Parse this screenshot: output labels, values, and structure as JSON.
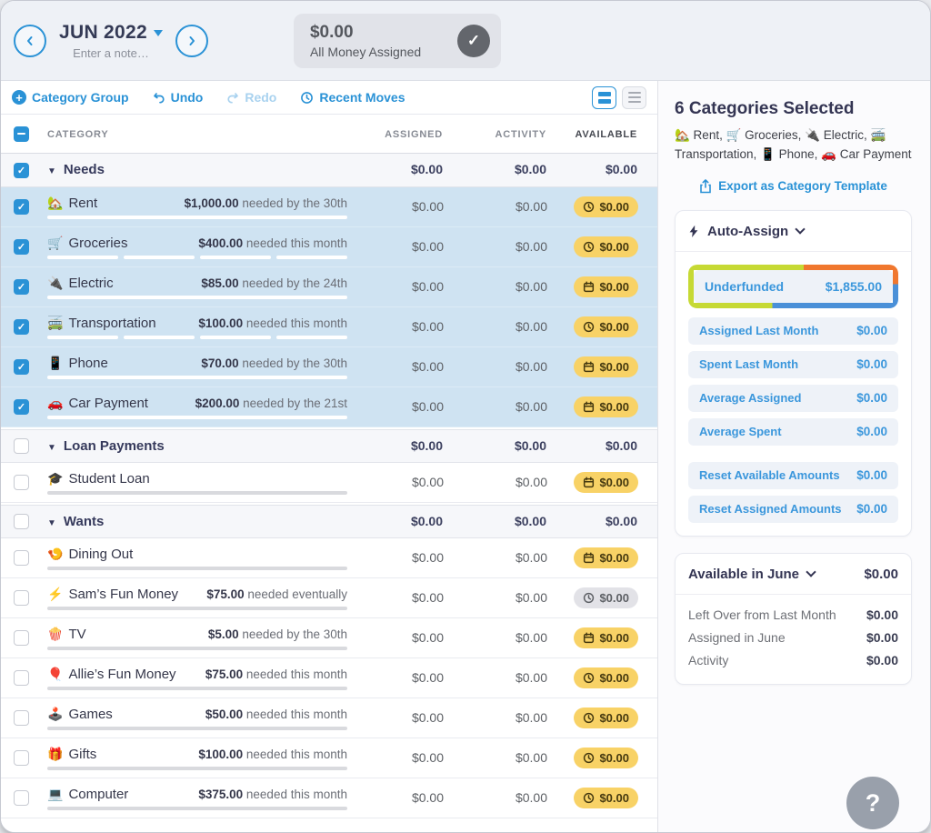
{
  "header": {
    "month_label": "JUN 2022",
    "note_placeholder": "Enter a note…",
    "money_box": {
      "amount": "$0.00",
      "label": "All Money Assigned"
    }
  },
  "toolbar": {
    "category_group": "Category Group",
    "undo": "Undo",
    "redo": "Redo",
    "recent_moves": "Recent Moves"
  },
  "table": {
    "columns": {
      "category": "CATEGORY",
      "assigned": "ASSIGNED",
      "activity": "ACTIVITY",
      "available": "AVAILABLE"
    },
    "rows": [
      {
        "type": "group",
        "name": "Needs",
        "checked": true,
        "assigned": "$0.00",
        "activity": "$0.00",
        "available": "$0.00"
      },
      {
        "type": "category",
        "emoji": "🏡",
        "name": "Rent",
        "checked": true,
        "selected": true,
        "target_amount": "$1,000.00",
        "target_note": "needed by the 30th",
        "assigned": "$0.00",
        "activity": "$0.00",
        "available": "$0.00",
        "pill": "yellow",
        "pill_icon": "clock",
        "segments": 1
      },
      {
        "type": "category",
        "emoji": "🛒",
        "name": "Groceries",
        "checked": true,
        "selected": true,
        "target_amount": "$400.00",
        "target_note": "needed this month",
        "assigned": "$0.00",
        "activity": "$0.00",
        "available": "$0.00",
        "pill": "yellow",
        "pill_icon": "clock",
        "segments": 4
      },
      {
        "type": "category",
        "emoji": "🔌",
        "name": "Electric",
        "checked": true,
        "selected": true,
        "target_amount": "$85.00",
        "target_note": "needed by the 24th",
        "assigned": "$0.00",
        "activity": "$0.00",
        "available": "$0.00",
        "pill": "yellow",
        "pill_icon": "calendar",
        "segments": 1
      },
      {
        "type": "category",
        "emoji": "🚎",
        "name": "Transportation",
        "checked": true,
        "selected": true,
        "target_amount": "$100.00",
        "target_note": "needed this month",
        "assigned": "$0.00",
        "activity": "$0.00",
        "available": "$0.00",
        "pill": "yellow",
        "pill_icon": "clock",
        "segments": 4
      },
      {
        "type": "category",
        "emoji": "📱",
        "name": "Phone",
        "checked": true,
        "selected": true,
        "target_amount": "$70.00",
        "target_note": "needed by the 30th",
        "assigned": "$0.00",
        "activity": "$0.00",
        "available": "$0.00",
        "pill": "yellow",
        "pill_icon": "calendar",
        "segments": 1
      },
      {
        "type": "category",
        "emoji": "🚗",
        "name": "Car Payment",
        "checked": true,
        "selected": true,
        "target_amount": "$200.00",
        "target_note": "needed by the 21st",
        "assigned": "$0.00",
        "activity": "$0.00",
        "available": "$0.00",
        "pill": "yellow",
        "pill_icon": "calendar",
        "segments": 1
      },
      {
        "type": "group",
        "name": "Loan Payments",
        "checked": false,
        "assigned": "$0.00",
        "activity": "$0.00",
        "available": "$0.00"
      },
      {
        "type": "category",
        "emoji": "🎓",
        "name": "Student Loan",
        "checked": false,
        "selected": false,
        "target_amount": "",
        "target_note": "",
        "assigned": "$0.00",
        "activity": "$0.00",
        "available": "$0.00",
        "pill": "yellow",
        "pill_icon": "calendar",
        "segments": 1
      },
      {
        "type": "group",
        "name": "Wants",
        "checked": false,
        "assigned": "$0.00",
        "activity": "$0.00",
        "available": "$0.00"
      },
      {
        "type": "category",
        "emoji": "🍤",
        "name": "Dining Out",
        "checked": false,
        "selected": false,
        "target_amount": "",
        "target_note": "",
        "assigned": "$0.00",
        "activity": "$0.00",
        "available": "$0.00",
        "pill": "yellow",
        "pill_icon": "calendar",
        "segments": 1
      },
      {
        "type": "category",
        "emoji": "⚡",
        "name": "Sam’s Fun Money",
        "checked": false,
        "selected": false,
        "target_amount": "$75.00",
        "target_note": "needed eventually",
        "assigned": "$0.00",
        "activity": "$0.00",
        "available": "$0.00",
        "pill": "gray",
        "pill_icon": "clock",
        "segments": 1
      },
      {
        "type": "category",
        "emoji": "🍿",
        "name": "TV",
        "checked": false,
        "selected": false,
        "target_amount": "$5.00",
        "target_note": "needed by the 30th",
        "assigned": "$0.00",
        "activity": "$0.00",
        "available": "$0.00",
        "pill": "yellow",
        "pill_icon": "calendar",
        "segments": 1
      },
      {
        "type": "category",
        "emoji": "🎈",
        "name": "Allie’s Fun Money",
        "checked": false,
        "selected": false,
        "target_amount": "$75.00",
        "target_note": "needed this month",
        "assigned": "$0.00",
        "activity": "$0.00",
        "available": "$0.00",
        "pill": "yellow",
        "pill_icon": "clock",
        "segments": 1
      },
      {
        "type": "category",
        "emoji": "🕹️",
        "name": "Games",
        "checked": false,
        "selected": false,
        "target_amount": "$50.00",
        "target_note": "needed this month",
        "assigned": "$0.00",
        "activity": "$0.00",
        "available": "$0.00",
        "pill": "yellow",
        "pill_icon": "clock",
        "segments": 1
      },
      {
        "type": "category",
        "emoji": "🎁",
        "name": "Gifts",
        "checked": false,
        "selected": false,
        "target_amount": "$100.00",
        "target_note": "needed this month",
        "assigned": "$0.00",
        "activity": "$0.00",
        "available": "$0.00",
        "pill": "yellow",
        "pill_icon": "clock",
        "segments": 1
      },
      {
        "type": "category",
        "emoji": "💻",
        "name": "Computer",
        "checked": false,
        "selected": false,
        "target_amount": "$375.00",
        "target_note": "needed this month",
        "assigned": "$0.00",
        "activity": "$0.00",
        "available": "$0.00",
        "pill": "yellow",
        "pill_icon": "clock",
        "segments": 1
      }
    ]
  },
  "sidebar": {
    "title": "6 Categories Selected",
    "selected_list": "🏡 Rent, 🛒 Groceries, 🔌 Electric, 🚎 Transportation, 📱 Phone, 🚗 Car Payment",
    "export_label": "Export as Category Template",
    "auto_assign": {
      "title": "Auto-Assign",
      "underfunded": {
        "label": "Underfunded",
        "value": "$1,855.00"
      },
      "stats": [
        {
          "label": "Assigned Last Month",
          "value": "$0.00"
        },
        {
          "label": "Spent Last Month",
          "value": "$0.00"
        },
        {
          "label": "Average Assigned",
          "value": "$0.00"
        },
        {
          "label": "Average Spent",
          "value": "$0.00"
        }
      ],
      "resets": [
        {
          "label": "Reset Available Amounts",
          "value": "$0.00"
        },
        {
          "label": "Reset Assigned Amounts",
          "value": "$0.00"
        }
      ]
    },
    "available": {
      "title": "Available in June",
      "total": "$0.00",
      "rows": [
        {
          "label": "Left Over from Last Month",
          "value": "$0.00"
        },
        {
          "label": "Assigned in June",
          "value": "$0.00"
        },
        {
          "label": "Activity",
          "value": "$0.00"
        }
      ]
    },
    "help_glyph": "?"
  },
  "colors": {
    "accent_blue": "#2a92d6",
    "navy": "#343a55",
    "selected_row": "#cfe3f2",
    "pill_yellow": "#f8d266",
    "pill_gray": "#e2e2e7",
    "highlight_green": "#c6d934",
    "highlight_orange": "#f0772e",
    "highlight_blue": "#4a90d8"
  }
}
